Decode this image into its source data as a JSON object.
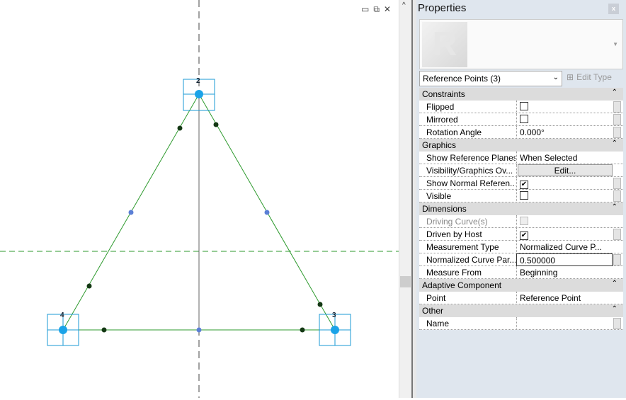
{
  "canvas": {
    "point_labels": [
      "2",
      "3",
      "4"
    ],
    "colors": {
      "points": "#1aa3e8",
      "curve": "#2e9a2e",
      "midpoints": "#5b7fd6",
      "ref_square": "#1a9ad6"
    }
  },
  "panel": {
    "title": "Properties",
    "close": "x",
    "type_selector": "Reference Points (3)",
    "edit_type": "Edit Type",
    "groups": [
      {
        "name": "Constraints",
        "rows": [
          {
            "name": "Flipped",
            "checkbox": false
          },
          {
            "name": "Mirrored",
            "checkbox": false
          },
          {
            "name": "Rotation Angle",
            "value": "0.000°"
          }
        ]
      },
      {
        "name": "Graphics",
        "rows": [
          {
            "name": "Show Reference Planes",
            "value": "When Selected"
          },
          {
            "name": "Visibility/Graphics Ov...",
            "button": "Edit..."
          },
          {
            "name": "Show Normal Referen...",
            "checkbox": true
          },
          {
            "name": "Visible",
            "checkbox": false
          }
        ]
      },
      {
        "name": "Dimensions",
        "rows": [
          {
            "name": "Driving Curve(s)",
            "checkbox": false,
            "disabled": true
          },
          {
            "name": "Driven by Host",
            "checkbox": true
          },
          {
            "name": "Measurement Type",
            "value": "Normalized Curve P..."
          },
          {
            "name": "Normalized Curve Par...",
            "value": "0.500000",
            "active": true
          },
          {
            "name": "Measure From",
            "value": "Beginning"
          }
        ]
      },
      {
        "name": "Adaptive Component",
        "rows": [
          {
            "name": "Point",
            "value": "Reference Point"
          }
        ]
      },
      {
        "name": "Other",
        "rows": [
          {
            "name": "Name",
            "value": ""
          }
        ]
      }
    ]
  }
}
